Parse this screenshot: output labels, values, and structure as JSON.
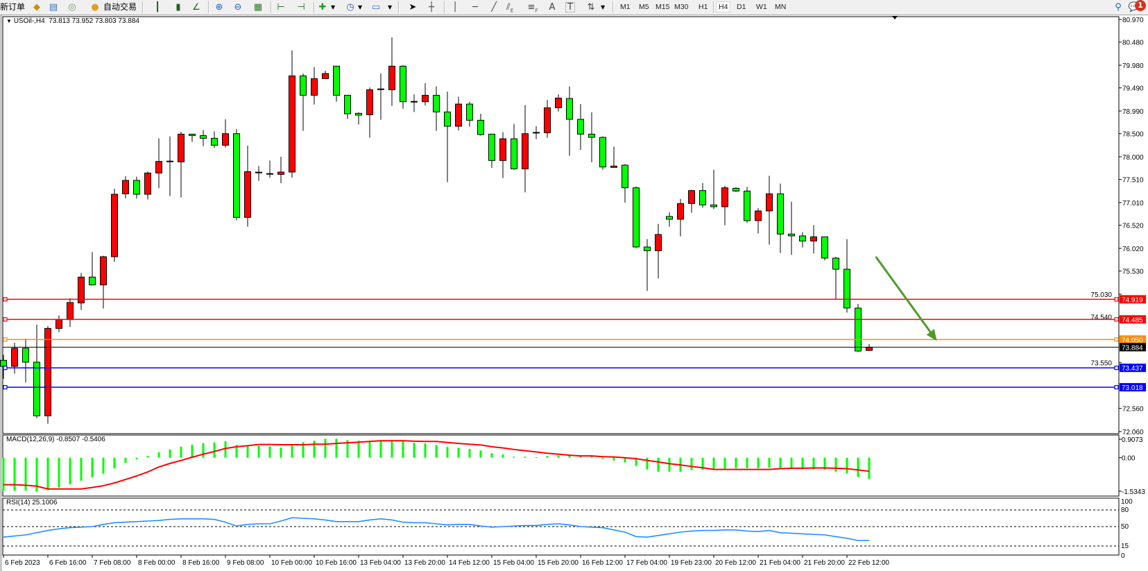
{
  "toolbar": {
    "new_order": "新订单",
    "auto_trading": "自动交易",
    "timeframes": [
      "M1",
      "M5",
      "M15",
      "M30",
      "H1",
      "H4",
      "D1",
      "W1",
      "MN"
    ],
    "active_timeframe": "H4",
    "notification_count": "1",
    "text_label_tool": "A",
    "text_tool": "T",
    "channel_suffix": "E",
    "fibo_suffix": "F"
  },
  "chart_data": {
    "type": "candlestick",
    "header": {
      "symbol": "USOil-,H4",
      "open": "73.813",
      "high": "73.952",
      "low": "73.803",
      "close": "73.884"
    },
    "bullish_color": "#ff0000",
    "bearish_color": "#00ff00",
    "ylim": [
      72.06,
      80.97
    ],
    "y_ticks": [
      "80.970",
      "80.480",
      "79.980",
      "79.490",
      "78.990",
      "78.500",
      "78.000",
      "77.510",
      "77.010",
      "76.520",
      "76.020",
      "75.530",
      "75.030",
      "74.540",
      "73.550",
      "72.560",
      "72.060"
    ],
    "x_ticks": [
      {
        "bar": 0,
        "label": "6 Feb 2023"
      },
      {
        "bar": 4,
        "label": "6 Feb 16:00"
      },
      {
        "bar": 8,
        "label": "7 Feb 08:00"
      },
      {
        "bar": 12,
        "label": "8 Feb 00:00"
      },
      {
        "bar": 16,
        "label": "8 Feb 16:00"
      },
      {
        "bar": 20,
        "label": "9 Feb 08:00"
      },
      {
        "bar": 24,
        "label": "10 Feb 00:00"
      },
      {
        "bar": 28,
        "label": "10 Feb 16:00"
      },
      {
        "bar": 32,
        "label": "13 Feb 04:00"
      },
      {
        "bar": 36,
        "label": "13 Feb 20:00"
      },
      {
        "bar": 40,
        "label": "14 Feb 12:00"
      },
      {
        "bar": 44,
        "label": "15 Feb 04:00"
      },
      {
        "bar": 48,
        "label": "15 Feb 20:00"
      },
      {
        "bar": 52,
        "label": "16 Feb 12:00"
      },
      {
        "bar": 56,
        "label": "17 Feb 04:00"
      },
      {
        "bar": 60,
        "label": "19 Feb 23:00"
      },
      {
        "bar": 64,
        "label": "20 Feb 12:00"
      },
      {
        "bar": 68,
        "label": "21 Feb 04:00"
      },
      {
        "bar": 72,
        "label": "21 Feb 20:00"
      },
      {
        "bar": 76,
        "label": "22 Feb 12:00"
      }
    ],
    "ohlc": [
      [
        73.6,
        73.72,
        73.2,
        73.47
      ],
      [
        73.47,
        73.98,
        73.31,
        73.86
      ],
      [
        73.86,
        74.07,
        73.12,
        73.56
      ],
      [
        73.56,
        74.37,
        72.35,
        72.4
      ],
      [
        72.4,
        74.34,
        72.23,
        74.29
      ],
      [
        74.29,
        74.57,
        74.21,
        74.48
      ],
      [
        74.48,
        74.94,
        74.32,
        74.85
      ],
      [
        74.84,
        75.49,
        74.69,
        75.4
      ],
      [
        75.4,
        75.94,
        75.22,
        75.23
      ],
      [
        75.23,
        75.86,
        74.72,
        75.84
      ],
      [
        75.84,
        77.31,
        75.73,
        77.19
      ],
      [
        77.2,
        77.58,
        77.1,
        77.49
      ],
      [
        77.49,
        77.57,
        77.1,
        77.19
      ],
      [
        77.19,
        77.68,
        77.08,
        77.65
      ],
      [
        77.65,
        78.4,
        77.32,
        77.9
      ],
      [
        77.9,
        78.44,
        77.15,
        77.9
      ],
      [
        77.89,
        78.54,
        77.12,
        78.49
      ],
      [
        78.49,
        78.49,
        78.32,
        78.46
      ],
      [
        78.46,
        78.58,
        78.23,
        78.4
      ],
      [
        78.4,
        78.55,
        78.19,
        78.25
      ],
      [
        78.25,
        78.81,
        78.2,
        78.5
      ],
      [
        78.5,
        78.6,
        76.63,
        76.69
      ],
      [
        76.69,
        78.24,
        76.49,
        77.68
      ],
      [
        77.66,
        77.8,
        77.48,
        77.66
      ],
      [
        77.63,
        77.92,
        77.55,
        77.63
      ],
      [
        77.62,
        78.0,
        77.43,
        77.67
      ],
      [
        77.67,
        80.3,
        77.55,
        79.75
      ],
      [
        79.75,
        79.8,
        78.56,
        79.33
      ],
      [
        79.33,
        79.94,
        79.13,
        79.69
      ],
      [
        79.69,
        79.86,
        79.69,
        79.8
      ],
      [
        79.96,
        79.96,
        79.19,
        79.33
      ],
      [
        79.33,
        79.33,
        78.82,
        78.93
      ],
      [
        78.94,
        78.96,
        78.7,
        78.9
      ],
      [
        78.91,
        79.5,
        78.41,
        79.45
      ],
      [
        79.46,
        79.8,
        78.8,
        79.46
      ],
      [
        79.45,
        80.58,
        79.1,
        79.96
      ],
      [
        79.96,
        79.98,
        79.04,
        79.19
      ],
      [
        79.19,
        79.35,
        78.97,
        79.19
      ],
      [
        79.19,
        79.59,
        79.11,
        79.33
      ],
      [
        79.33,
        79.52,
        78.56,
        78.97
      ],
      [
        78.97,
        79.41,
        77.45,
        78.66
      ],
      [
        78.66,
        79.3,
        78.57,
        79.14
      ],
      [
        79.14,
        79.19,
        78.65,
        78.79
      ],
      [
        78.79,
        78.93,
        78.46,
        78.48
      ],
      [
        78.49,
        78.5,
        77.76,
        77.92
      ],
      [
        77.92,
        78.53,
        77.54,
        78.39
      ],
      [
        78.39,
        78.71,
        77.72,
        77.74
      ],
      [
        77.74,
        79.12,
        77.23,
        78.5
      ],
      [
        78.52,
        78.66,
        78.38,
        78.52
      ],
      [
        78.52,
        79.23,
        78.41,
        79.06
      ],
      [
        79.06,
        79.35,
        78.98,
        79.27
      ],
      [
        79.26,
        79.52,
        78.02,
        78.81
      ],
      [
        78.81,
        79.14,
        78.15,
        78.49
      ],
      [
        78.49,
        78.96,
        77.88,
        78.42
      ],
      [
        78.42,
        78.44,
        77.72,
        77.78
      ],
      [
        77.77,
        78.22,
        77.77,
        77.8
      ],
      [
        77.82,
        77.84,
        77.01,
        77.33
      ],
      [
        77.33,
        77.36,
        76.03,
        76.05
      ],
      [
        76.05,
        76.22,
        75.1,
        75.97
      ],
      [
        75.97,
        76.55,
        75.37,
        76.32
      ],
      [
        76.71,
        76.8,
        76.49,
        76.65
      ],
      [
        76.65,
        77.09,
        76.28,
        76.99
      ],
      [
        76.99,
        77.29,
        76.79,
        77.27
      ],
      [
        77.27,
        77.43,
        76.9,
        76.96
      ],
      [
        76.96,
        77.72,
        76.87,
        76.92
      ],
      [
        76.92,
        77.37,
        76.52,
        77.33
      ],
      [
        77.32,
        77.34,
        77.24,
        77.26
      ],
      [
        77.26,
        77.35,
        76.57,
        76.62
      ],
      [
        76.62,
        76.89,
        76.34,
        76.83
      ],
      [
        76.83,
        77.59,
        76.1,
        77.2
      ],
      [
        77.2,
        77.42,
        75.92,
        76.33
      ],
      [
        76.33,
        77.03,
        75.88,
        76.29
      ],
      [
        76.29,
        76.37,
        76.04,
        76.18
      ],
      [
        76.18,
        76.52,
        75.91,
        76.27
      ],
      [
        76.27,
        76.27,
        75.76,
        75.81
      ],
      [
        75.81,
        75.84,
        74.92,
        75.57
      ],
      [
        75.57,
        76.22,
        74.63,
        74.73
      ],
      [
        74.73,
        74.82,
        73.78,
        73.8
      ],
      [
        73.813,
        73.952,
        73.803,
        73.884
      ]
    ],
    "hlines": [
      {
        "price": "74.919",
        "color": "#ff0000"
      },
      {
        "price": "74.485",
        "color": "#ff0000"
      },
      {
        "price": "74.050",
        "color": "#ff8c00"
      },
      {
        "price": "73.437",
        "color": "#0000ff"
      },
      {
        "price": "73.018",
        "color": "#0000ff"
      }
    ],
    "bid": {
      "price": "73.884",
      "color": "#000000"
    },
    "arrow": {
      "from": {
        "bar": 78.6,
        "price": 75.84
      },
      "to": {
        "bar": 84.1,
        "price": 74.02
      },
      "color": "#4f9a2a"
    },
    "macd": {
      "label": "MACD(12,26,9) -0.8507 -0.5406",
      "ylim": [
        -1.5343,
        0.9073
      ],
      "y_ticks": [
        "0.9073",
        "0.00",
        "-1.5343"
      ],
      "histogram_color": "#00ff00",
      "signal_color": "#ff0000",
      "main": [
        -1.33,
        -1.32,
        -1.32,
        -1.36,
        -1.3,
        -1.19,
        -1.06,
        -0.92,
        -0.79,
        -0.64,
        -0.43,
        -0.21,
        -0.07,
        0.07,
        0.22,
        0.33,
        0.44,
        0.52,
        0.58,
        0.61,
        0.66,
        0.51,
        0.48,
        0.48,
        0.45,
        0.4,
        0.49,
        0.62,
        0.68,
        0.76,
        0.76,
        0.7,
        0.68,
        0.66,
        0.66,
        0.68,
        0.66,
        0.6,
        0.57,
        0.51,
        0.43,
        0.4,
        0.35,
        0.29,
        0.18,
        0.13,
        0.04,
        0.04,
        0.02,
        0.07,
        0.09,
        0.07,
        0.05,
        0.07,
        -0.05,
        -0.11,
        -0.19,
        -0.33,
        -0.47,
        -0.56,
        -0.56,
        -0.56,
        -0.49,
        -0.49,
        -0.44,
        -0.44,
        -0.42,
        -0.42,
        -0.42,
        -0.4,
        -0.42,
        -0.42,
        -0.47,
        -0.47,
        -0.49,
        -0.56,
        -0.63,
        -0.77,
        -0.8507
      ],
      "signal": [
        -1.08,
        -1.08,
        -1.1,
        -1.14,
        -1.25,
        -1.25,
        -1.25,
        -1.25,
        -1.19,
        -1.12,
        -1.01,
        -0.87,
        -0.73,
        -0.57,
        -0.37,
        -0.23,
        -0.11,
        0.02,
        0.14,
        0.25,
        0.37,
        0.44,
        0.48,
        0.53,
        0.53,
        0.52,
        0.52,
        0.52,
        0.54,
        0.54,
        0.57,
        0.6,
        0.62,
        0.65,
        0.68,
        0.68,
        0.68,
        0.66,
        0.65,
        0.65,
        0.61,
        0.57,
        0.54,
        0.51,
        0.44,
        0.39,
        0.33,
        0.28,
        0.23,
        0.18,
        0.14,
        0.1,
        0.07,
        0.07,
        0.04,
        0.03,
        0.0,
        -0.04,
        -0.11,
        -0.17,
        -0.24,
        -0.29,
        -0.35,
        -0.4,
        -0.47,
        -0.47,
        -0.47,
        -0.47,
        -0.47,
        -0.47,
        -0.44,
        -0.42,
        -0.42,
        -0.41,
        -0.41,
        -0.42,
        -0.44,
        -0.49,
        -0.5406
      ]
    },
    "rsi": {
      "label": "RSI(14) 25.1006",
      "ylim": [
        0,
        100
      ],
      "y_ticks": [
        "100",
        "80",
        "50",
        "15",
        "0"
      ],
      "levels": [
        80,
        50,
        15
      ],
      "color": "#1e90ff",
      "values": [
        31,
        33,
        35,
        39,
        43,
        46,
        48,
        49,
        50,
        54,
        57,
        58,
        59,
        60,
        61,
        63,
        64,
        64,
        64,
        63,
        58,
        51,
        54,
        55,
        55,
        60,
        66,
        65,
        64,
        62,
        59,
        59,
        59,
        62,
        64,
        62,
        58,
        57,
        57,
        55,
        53,
        54,
        54,
        51,
        49,
        50,
        51,
        52,
        52,
        54,
        55,
        53,
        50,
        49,
        48,
        44,
        40,
        32,
        31,
        34,
        37,
        40,
        42,
        43,
        43,
        44,
        44,
        42,
        41,
        43,
        39,
        38,
        37,
        36,
        35,
        32,
        29,
        25,
        25.1006
      ]
    }
  }
}
